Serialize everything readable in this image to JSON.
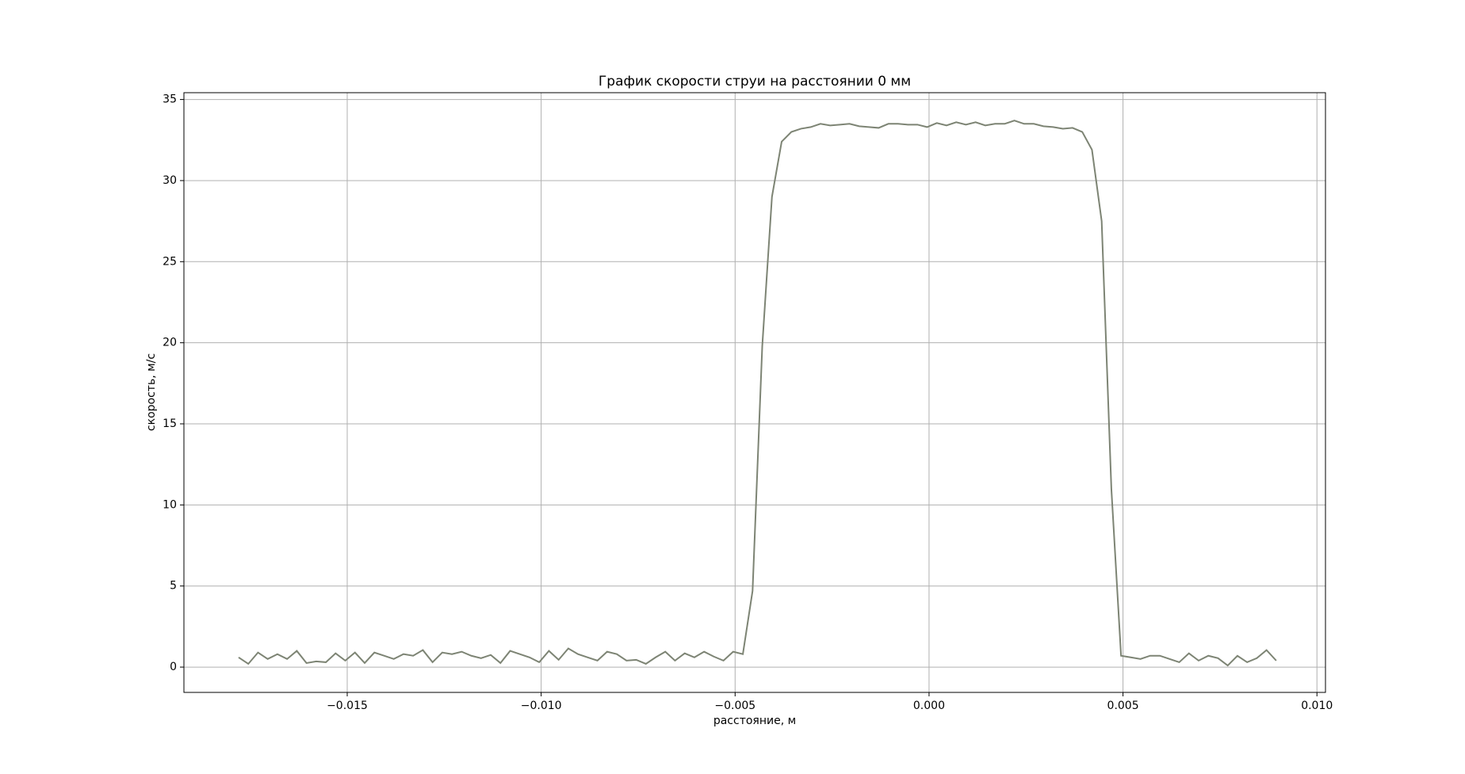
{
  "chart_data": {
    "type": "line",
    "title": "График скорости струи на расстоянии 0 мм",
    "xlabel": "расстояние, м",
    "ylabel": "скорость, м/с",
    "x": [
      -0.0178,
      -0.01755,
      -0.0173,
      -0.01705,
      -0.0168,
      -0.01655,
      -0.0163,
      -0.01605,
      -0.0158,
      -0.01555,
      -0.0153,
      -0.01505,
      -0.0148,
      -0.01455,
      -0.0143,
      -0.01405,
      -0.0138,
      -0.01355,
      -0.0133,
      -0.01305,
      -0.0128,
      -0.01255,
      -0.0123,
      -0.01205,
      -0.0118,
      -0.01155,
      -0.0113,
      -0.01105,
      -0.0108,
      -0.01055,
      -0.0103,
      -0.01005,
      -0.0098,
      -0.00955,
      -0.0093,
      -0.00905,
      -0.0088,
      -0.00855,
      -0.0083,
      -0.00805,
      -0.0078,
      -0.00755,
      -0.0073,
      -0.00705,
      -0.0068,
      -0.00655,
      -0.0063,
      -0.00605,
      -0.0058,
      -0.00555,
      -0.0053,
      -0.00505,
      -0.0048,
      -0.00455,
      -0.0043,
      -0.00405,
      -0.0038,
      -0.00355,
      -0.0033,
      -0.00305,
      -0.0028,
      -0.00255,
      -0.0023,
      -0.00205,
      -0.0018,
      -0.00155,
      -0.0013,
      -0.00105,
      -0.0008,
      -0.00055,
      -0.0003,
      -5e-05,
      0.0002,
      0.00045,
      0.0007,
      0.00095,
      0.0012,
      0.00145,
      0.0017,
      0.00195,
      0.0022,
      0.00245,
      0.0027,
      0.00295,
      0.0032,
      0.00345,
      0.0037,
      0.00395,
      0.0042,
      0.00445,
      0.0047,
      0.00495,
      0.0052,
      0.00545,
      0.0057,
      0.00595,
      0.0062,
      0.00645,
      0.0067,
      0.00695,
      0.0072,
      0.00745,
      0.0077,
      0.00795,
      0.0082,
      0.00845,
      0.0087,
      0.00895
    ],
    "series": [
      {
        "color": "#7d8474",
        "values": [
          0.6,
          0.2,
          0.9,
          0.5,
          0.8,
          0.5,
          1.0,
          0.25,
          0.35,
          0.3,
          0.85,
          0.4,
          0.9,
          0.25,
          0.9,
          0.7,
          0.5,
          0.8,
          0.7,
          1.05,
          0.3,
          0.9,
          0.8,
          0.95,
          0.7,
          0.55,
          0.75,
          0.25,
          1.0,
          0.8,
          0.6,
          0.3,
          1.0,
          0.45,
          1.15,
          0.8,
          0.6,
          0.4,
          0.95,
          0.8,
          0.4,
          0.45,
          0.2,
          0.6,
          0.95,
          0.4,
          0.85,
          0.6,
          0.95,
          0.65,
          0.4,
          0.95,
          0.8,
          4.7,
          19.8,
          29.0,
          32.4,
          33.0,
          33.2,
          33.3,
          33.5,
          33.4,
          33.45,
          33.5,
          33.35,
          33.3,
          33.25,
          33.5,
          33.5,
          33.45,
          33.45,
          33.3,
          33.55,
          33.4,
          33.6,
          33.45,
          33.6,
          33.4,
          33.5,
          33.5,
          33.7,
          33.5,
          33.5,
          33.35,
          33.3,
          33.2,
          33.25,
          33.0,
          31.9,
          27.5,
          11.0,
          0.7,
          0.6,
          0.5,
          0.7,
          0.7,
          0.5,
          0.3,
          0.85,
          0.4,
          0.7,
          0.55,
          0.1,
          0.7,
          0.3,
          0.55,
          1.05,
          0.4
        ]
      }
    ],
    "xlim": [
      -0.01921,
      0.01022
    ],
    "ylim": [
      -1.56,
      35.42
    ],
    "xticks": [
      {
        "value": -0.015,
        "label": "−0.015"
      },
      {
        "value": -0.01,
        "label": "−0.010"
      },
      {
        "value": -0.005,
        "label": "−0.005"
      },
      {
        "value": 0,
        "label": "0.000"
      },
      {
        "value": 0.005,
        "label": "0.005"
      },
      {
        "value": 0.01,
        "label": "0.010"
      }
    ],
    "yticks": [
      0,
      5,
      10,
      15,
      20,
      25,
      30,
      35
    ],
    "grid": true
  }
}
